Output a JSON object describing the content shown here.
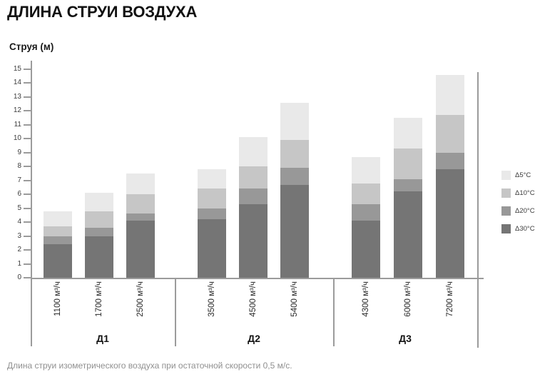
{
  "header": {
    "title": "ДЛИНА СТРУИ ВОЗДУХА"
  },
  "caption": "Длина струи изометрического воздуха при остаточной скорости 0,5 м/с.",
  "chart_data": {
    "type": "bar",
    "stacked": true,
    "title": "ДЛИНА СТРУИ ВОЗДУХА",
    "ylabel": "Струя (м)",
    "xlabel": "",
    "ylim": [
      0,
      15
    ],
    "ytick_step": 1,
    "grid": false,
    "legend_position": "right",
    "groups": [
      {
        "label": "Д1",
        "categories": [
          "1100 м³/ч",
          "1700 м³/ч",
          "2500 м³/ч"
        ]
      },
      {
        "label": "Д2",
        "categories": [
          "3500 м³/ч",
          "4500 м³/ч",
          "5400 м³/ч"
        ]
      },
      {
        "label": "Д3",
        "categories": [
          "4300 м³/ч",
          "6000 м³/ч",
          "7200 м³/ч"
        ]
      }
    ],
    "categories": [
      "1100 м³/ч",
      "1700 м³/ч",
      "2500 м³/ч",
      "3500 м³/ч",
      "4500 м³/ч",
      "5400 м³/ч",
      "4300 м³/ч",
      "6000 м³/ч",
      "7200 м³/ч"
    ],
    "series": [
      {
        "name": "Δ5°C",
        "color": "#e9e9e9",
        "values": [
          1.1,
          1.3,
          1.5,
          1.4,
          2.1,
          2.7,
          1.9,
          2.2,
          2.9
        ]
      },
      {
        "name": "Δ10°C",
        "color": "#c6c6c6",
        "values": [
          0.7,
          1.2,
          1.4,
          1.4,
          1.6,
          2.0,
          1.5,
          2.2,
          2.7
        ]
      },
      {
        "name": "Δ20°C",
        "color": "#989898",
        "values": [
          0.6,
          0.6,
          0.5,
          0.8,
          1.1,
          1.2,
          1.2,
          0.9,
          1.2
        ]
      },
      {
        "name": "Δ30°C",
        "color": "#757575",
        "values": [
          2.4,
          3.0,
          4.1,
          4.2,
          5.3,
          6.7,
          4.1,
          6.2,
          7.8
        ]
      }
    ],
    "stack_order_bottom_to_top": [
      "Δ30°C",
      "Δ20°C",
      "Δ10°C",
      "Δ5°C"
    ],
    "stack_totals": [
      4.8,
      6.1,
      7.5,
      7.8,
      10.1,
      12.6,
      8.7,
      11.5,
      14.6
    ]
  }
}
